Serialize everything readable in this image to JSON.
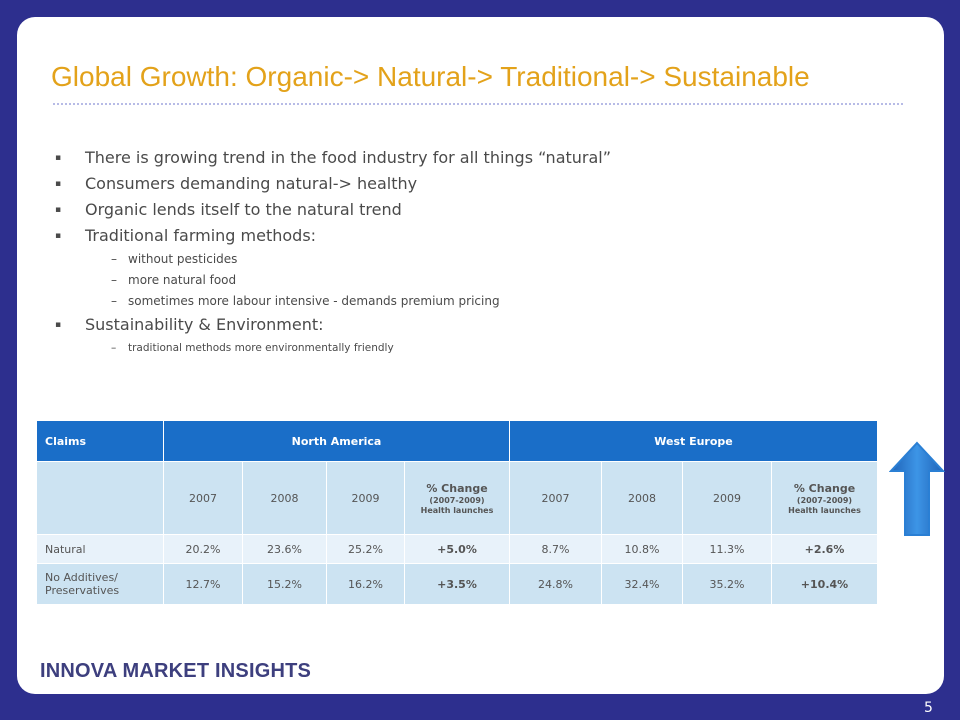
{
  "slide": {
    "title": "Global Growth: Organic-> Natural-> Traditional-> Sustainable",
    "bullets": [
      {
        "text": "There is growing trend in the food industry for all things “natural”"
      },
      {
        "text": "Consumers demanding natural-> healthy"
      },
      {
        "text": "Organic lends itself to the natural trend"
      },
      {
        "text": "Traditional farming methods:",
        "sub": [
          "without pesticides",
          "more natural food",
          "sometimes more labour intensive - demands premium pricing"
        ]
      },
      {
        "text": "Sustainability & Environment:",
        "sub": [
          "traditional  methods  more environmentally  friendly"
        ]
      }
    ],
    "bullet_marker": "▪",
    "sub_marker": "–",
    "table": {
      "col_claims": "Claims",
      "region_na": "North America",
      "region_we": "West Europe",
      "years": [
        "2007",
        "2008",
        "2009"
      ],
      "pct_change": "% Change",
      "pct_range": "(2007-2009)",
      "pct_note": "Health launches",
      "rows": [
        {
          "label": "Natural",
          "na": [
            "20.2%",
            "23.6%",
            "25.2%",
            "+5.0%"
          ],
          "we": [
            "8.7%",
            "10.8%",
            "11.3%",
            "+2.6%"
          ]
        },
        {
          "label": "No Additives/ Preservatives",
          "na": [
            "12.7%",
            "15.2%",
            "16.2%",
            "+3.5%"
          ],
          "we": [
            "24.8%",
            "32.4%",
            "35.2%",
            "+10.4%"
          ]
        }
      ]
    },
    "arrow_icon": "up-arrow-icon",
    "logo": "INNOVA MARKET INSIGHTS",
    "page_number": "5"
  },
  "colors": {
    "background": "#2d2f8e",
    "title": "#e3a21a",
    "table_header": "#1a6ec8",
    "row_dark": "#cce3f2",
    "row_light": "#e8f2fa",
    "arrow": "#2a7fd4"
  }
}
